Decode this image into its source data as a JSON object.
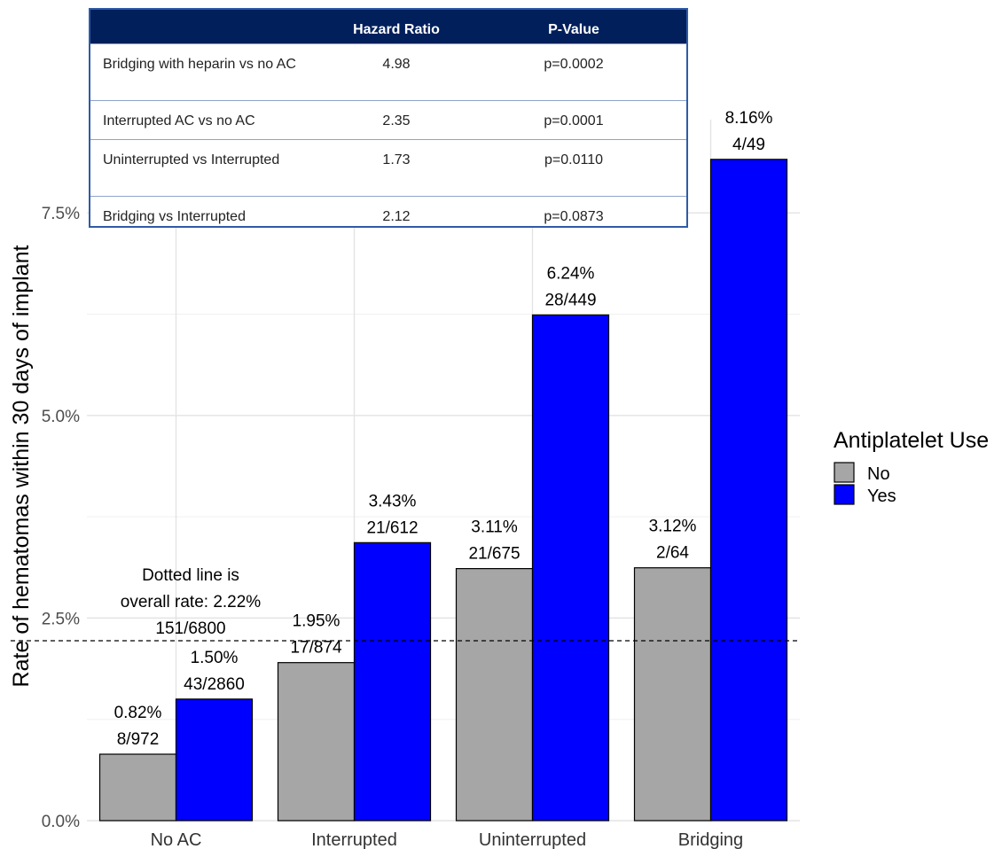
{
  "table": {
    "headers": [
      "",
      "Hazard Ratio",
      "P-Value"
    ],
    "rows": [
      {
        "comparison": "Bridging with heparin vs no AC",
        "hazard_ratio": "4.98",
        "p_value": "p=0.0002"
      },
      {
        "comparison": "Interrupted AC vs no AC",
        "hazard_ratio": "2.35",
        "p_value": "p=0.0001"
      },
      {
        "comparison": "Uninterrupted vs Interrupted",
        "hazard_ratio": "1.73",
        "p_value": "p=0.0110"
      },
      {
        "comparison": "Bridging vs Interrupted",
        "hazard_ratio": "2.12",
        "p_value": "p=0.0873"
      }
    ]
  },
  "chart_data": {
    "type": "bar",
    "categories": [
      "No AC",
      "Interrupted",
      "Uninterrupted",
      "Bridging"
    ],
    "ylabel": "Rate of hematomas within 30 days of implant",
    "ylim": [
      0,
      0.0865
    ],
    "yticks": [
      0,
      0.025,
      0.05,
      0.075
    ],
    "ytick_labels": [
      "0.0%",
      "2.5%",
      "5.0%",
      "7.5%"
    ],
    "grid": true,
    "legend_title": "Antiplatelet Use",
    "legend_position": "right",
    "series": [
      {
        "name": "No",
        "color": "#a6a6a6",
        "values": [
          0.0082,
          0.0195,
          0.0311,
          0.0312
        ],
        "percent_labels": [
          "0.82%",
          "1.95%",
          "3.11%",
          "3.12%"
        ],
        "count_labels": [
          "8/972",
          "17/874",
          "21/675",
          "2/64"
        ]
      },
      {
        "name": "Yes",
        "color": "#0000ff",
        "values": [
          0.015,
          0.0343,
          0.0624,
          0.0816
        ],
        "percent_labels": [
          "1.50%",
          "3.43%",
          "6.24%",
          "8.16%"
        ],
        "count_labels": [
          "43/2860",
          "21/612",
          "28/449",
          "4/49"
        ]
      }
    ],
    "reference_line": {
      "value": 0.0222,
      "style": "dashed"
    },
    "annotation": [
      "Dotted line is",
      "overall rate: 2.22%",
      "151/6800"
    ]
  }
}
